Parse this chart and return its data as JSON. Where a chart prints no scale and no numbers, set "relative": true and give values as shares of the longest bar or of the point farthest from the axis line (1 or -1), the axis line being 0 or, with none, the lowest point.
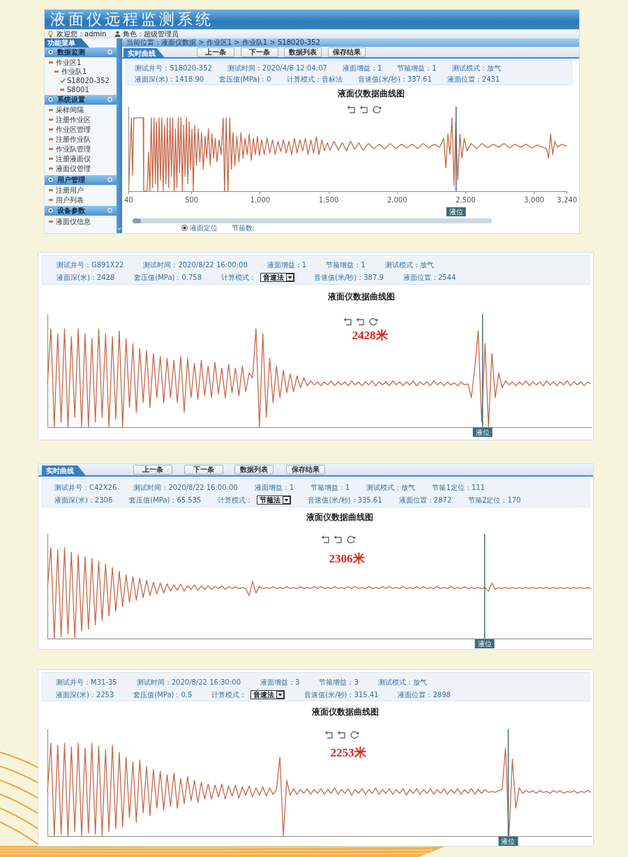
{
  "chart_data": [
    {
      "type": "line",
      "title": "液面仪数据曲线图",
      "annotations": [
        "液面仪远程监测系统",
        "欢迎您：admin",
        "角色：超级管理员",
        "功能菜单",
        "数据监测",
        "作业区1",
        "作业队1",
        "S18020-352",
        "S8001",
        "系统设置",
        "采样间隔",
        "注册作业区",
        "作业区管理",
        "注册作业队",
        "作业队管理",
        "注册液面仪",
        "液面仪管理",
        "用户管理",
        "注册用户",
        "用户列表",
        "设备参数",
        "液面仪信息",
        "当前位置：液面仪数据 > 作业区1 > 作业队1 > S18020-352",
        "实时曲线",
        "上一条",
        "下一条",
        "数据列表",
        "保存结果",
        "测试井号：S18020-352",
        "测试时间：2020/4/8 12:04:07",
        "液面增益：1",
        "节箍增益：1",
        "测试模式：放气",
        "液面深(米)：1418.90",
        "套压值(MPa)：0",
        "计算模式：音标法",
        "音速值(米/秒)：337.61",
        "液面位置：2431",
        "液面定位",
        "节箍数:"
      ],
      "x": [
        40,
        60,
        68,
        78,
        146,
        150,
        175,
        185,
        195,
        205,
        215,
        225,
        235,
        243,
        253,
        262,
        272,
        282,
        292,
        302,
        312,
        322,
        332,
        342,
        352,
        362,
        372,
        382,
        392,
        402,
        412,
        422,
        432,
        442,
        452,
        462,
        472,
        482,
        492,
        502,
        512,
        522,
        535,
        548,
        560,
        572,
        585,
        598,
        610,
        622,
        635,
        648,
        660,
        672,
        685,
        700,
        715,
        730,
        740,
        752,
        765,
        778,
        790,
        802,
        815,
        830,
        845,
        860,
        875,
        890,
        905,
        920,
        935,
        950,
        965,
        980,
        995,
        1010,
        1030,
        1050,
        1070,
        1090,
        1110,
        1130,
        1150,
        1170,
        1190,
        1210,
        1230,
        1250,
        1270,
        1290,
        1310,
        1330,
        1350,
        1370,
        1390,
        1410,
        1430,
        1450,
        1470,
        1490,
        1510,
        1540,
        1570,
        1600,
        1630,
        1660,
        1690,
        1720,
        1750,
        1790,
        1830,
        1870,
        1910,
        1950,
        1990,
        2030,
        2070,
        2110,
        2150,
        2190,
        2230,
        2270,
        2310,
        2340,
        2355,
        2370,
        2385,
        2400,
        2415,
        2428,
        2442,
        2458,
        2472,
        2490,
        2510,
        2540,
        2580,
        2620,
        2660,
        2700,
        2740,
        2780,
        2820,
        2860,
        2900,
        2940,
        2980,
        3020,
        3060,
        3090,
        3105,
        3120,
        3135,
        3150,
        3170,
        3200,
        3240
      ],
      "values": [
        0,
        1,
        0.22,
        1,
        1,
        0,
        0,
        0.53,
        0,
        1,
        0.05,
        1,
        0.1,
        0.95,
        0,
        1,
        0.15,
        1,
        0,
        0.9,
        0.1,
        1,
        0.05,
        1,
        0.2,
        1,
        0,
        0.85,
        0.05,
        1,
        0.25,
        1,
        0,
        0.9,
        0.2,
        1,
        0.1,
        0.95,
        0.3,
        0.85,
        0,
        0.9,
        0.35,
        0.85,
        0.4,
        0.8,
        0.3,
        0.75,
        0.45,
        0.85,
        0.35,
        0.78,
        0.45,
        0.72,
        0.4,
        0.7,
        0.5,
        1,
        0,
        1,
        0,
        1,
        0.3,
        0.8,
        0.35,
        0.75,
        0.4,
        0.8,
        0.45,
        0.72,
        0.5,
        0.78,
        0.42,
        0.72,
        0.5,
        0.75,
        0.48,
        0.7,
        0.5,
        0.72,
        0.52,
        0.7,
        0.5,
        0.68,
        0.54,
        0.7,
        0.52,
        0.68,
        0.5,
        0.72,
        0.52,
        0.7,
        0.55,
        0.72,
        0.5,
        0.7,
        0.52,
        0.74,
        0.5,
        0.7,
        0.55,
        0.66,
        0.56,
        0.68,
        0.56,
        0.66,
        0.55,
        0.68,
        0.57,
        0.66,
        0.56,
        0.65,
        0.58,
        0.64,
        0.58,
        0.65,
        0.58,
        0.64,
        0.59,
        0.64,
        0.58,
        0.65,
        0.59,
        0.64,
        0.6,
        0.72,
        0.32,
        0.78,
        0.5,
        1,
        0.08,
        0.95,
        0.15,
        0.78,
        0.45,
        0.72,
        0.55,
        0.65,
        0.58,
        0.65,
        0.59,
        0.64,
        0.6,
        0.65,
        0.59,
        0.64,
        0.6,
        0.64,
        0.59,
        0.63,
        0.6,
        0.58,
        0.45,
        0.78,
        0.5,
        0.68,
        0.6,
        0.64,
        0.61
      ],
      "color": "#c4694c",
      "relative": true,
      "xlim": [
        40,
        3240
      ],
      "xticks": [
        40,
        500,
        {
          "value": 1000,
          "label": "1,000"
        },
        {
          "value": 1500,
          "label": "1,500"
        },
        {
          "value": 2000,
          "label": "2,000"
        },
        {
          "value": 2500,
          "label": "2,500"
        },
        {
          "value": 3000,
          "label": "3,000"
        },
        {
          "value": 3240,
          "label": "3,240"
        }
      ],
      "ref_lines": [
        {
          "axis": "x",
          "value": 2430,
          "label": "液位",
          "color": "#3c6b7b"
        }
      ],
      "tick_labels": "x"
    },
    {
      "type": "line",
      "title": "液面仪数据曲线图",
      "annotations": [
        "测试井号：G891X22",
        "测试时间：2020/8/22 16:00:00",
        "液面增益：1",
        "节箍增益：1",
        "测试模式：放气",
        "液面深(米)：2428",
        "套压值(MPa)：0.758",
        "计算模式：",
        "音速法",
        "音速值(米/秒)：387.9",
        "液面位置：2544",
        "2428米",
        "液位"
      ],
      "categories": [
        null,
        null,
        null,
        null,
        null,
        null,
        null,
        null,
        null,
        null,
        null,
        null,
        null,
        null,
        null,
        null,
        null,
        null,
        null,
        null,
        null,
        null,
        null,
        null,
        null,
        null,
        null,
        null,
        null,
        null,
        null,
        null,
        null,
        null,
        null,
        null,
        null,
        null,
        null,
        null,
        null,
        null,
        null,
        null,
        null,
        null,
        null,
        null,
        null,
        null,
        null,
        null,
        null,
        null,
        null,
        null,
        null,
        null,
        null,
        null,
        null,
        null,
        null,
        null,
        null,
        null,
        null,
        null,
        null,
        null,
        null,
        null,
        null,
        null,
        null,
        null,
        null,
        null,
        null,
        null,
        null,
        null,
        null,
        null,
        null,
        null,
        null,
        null,
        null,
        null,
        null,
        null,
        null,
        null,
        null,
        null,
        null,
        null,
        null,
        null,
        null,
        null,
        null,
        null,
        null,
        null,
        null,
        null,
        null,
        null,
        null,
        null,
        null,
        null,
        null,
        null,
        null,
        null,
        null,
        null,
        null,
        null,
        null,
        null,
        null,
        null,
        null,
        null,
        null,
        null,
        null,
        null,
        null,
        null,
        null,
        null,
        null,
        null,
        null,
        null,
        null,
        null,
        null,
        null,
        null,
        null,
        null,
        null,
        null,
        null,
        null,
        null,
        null,
        null,
        null,
        null,
        null,
        null,
        null,
        null
      ],
      "values": [
        0.44,
        1,
        0,
        0.95,
        0.05,
        1,
        0,
        0.92,
        0.1,
        1,
        0,
        0.95,
        0,
        0.9,
        0.05,
        1,
        0.1,
        0.95,
        0,
        0.92,
        0.08,
        0.98,
        0,
        0.9,
        0.2,
        0.85,
        0.15,
        0.8,
        0.25,
        0.78,
        0.2,
        0.75,
        0.3,
        0.72,
        0.25,
        0.7,
        0.3,
        0.68,
        0.25,
        0.72,
        0.15,
        0.7,
        0.3,
        0.65,
        0.28,
        0.68,
        0.32,
        0.62,
        0.3,
        0.66,
        0.34,
        0.6,
        0.3,
        0.64,
        0.35,
        0.6,
        0.32,
        0.62,
        0.36,
        0.55,
        0.5,
        1,
        0,
        0.95,
        0.1,
        0.7,
        0.25,
        0.62,
        0.3,
        0.58,
        0.35,
        0.54,
        0.36,
        0.52,
        0.4,
        0.5,
        0.42,
        0.47,
        0.43,
        0.46,
        0.42,
        0.46,
        0.43,
        0.47,
        0.42,
        0.46,
        0.43,
        0.46,
        0.42,
        0.47,
        0.43,
        0.46,
        0.42,
        0.46,
        0.43,
        0.47,
        0.42,
        0.46,
        0.43,
        0.46,
        0.42,
        0.47,
        0.43,
        0.46,
        0.42,
        0.46,
        0.43,
        0.47,
        0.42,
        0.46,
        0.43,
        0.46,
        0.42,
        0.47,
        0.43,
        0.46,
        0.42,
        0.46,
        0.43,
        0.45,
        0.42,
        0.46,
        0.43,
        0.44,
        0.3,
        0.6,
        0.98,
        0.05,
        0.85,
        0,
        0.75,
        0.3,
        0.55,
        0.4,
        0.47,
        0.43,
        0.46,
        0.42,
        0.46,
        0.43,
        0.47,
        0.42,
        0.46,
        0.43,
        0.46,
        0.42,
        0.47,
        0.43,
        0.46,
        0.42,
        0.46,
        0.43,
        0.47,
        0.42,
        0.46,
        0.43,
        0.46,
        0.42,
        0.46,
        0.44
      ],
      "color": "#c4694c",
      "relative": true,
      "tick_labels": false
    },
    {
      "type": "line",
      "title": "液面仪数据曲线图",
      "annotations": [
        "实时曲线",
        "上一条",
        "下一条",
        "数据列表",
        "保存结果",
        "测试井号：C42X26",
        "测试时间：2020/8/22 16:00:00",
        "液面增益：1",
        "节箍增益：1",
        "测试模式：放气",
        "节箍1定位：111",
        "液面深(米)：2306",
        "套压值(MPa)：65.535",
        "计算模式：",
        "节箍法",
        "音速值(米/秒)：335.61",
        "液面位置：2872",
        "节箍2定位：170",
        "2306米",
        "液位"
      ],
      "categories": [
        null,
        null,
        null,
        null,
        null,
        null,
        null,
        null,
        null,
        null,
        null,
        null,
        null,
        null,
        null,
        null,
        null,
        null,
        null,
        null,
        null,
        null,
        null,
        null,
        null,
        null,
        null,
        null,
        null,
        null,
        null,
        null,
        null,
        null,
        null,
        null,
        null,
        null,
        null,
        null,
        null,
        null,
        null,
        null,
        null,
        null,
        null,
        null,
        null,
        null,
        null,
        null,
        null,
        null,
        null,
        null,
        null,
        null,
        null,
        null,
        null,
        null,
        null,
        null,
        null,
        null,
        null,
        null,
        null,
        null,
        null,
        null,
        null,
        null,
        null,
        null,
        null,
        null,
        null,
        null,
        null,
        null,
        null,
        null,
        null,
        null,
        null,
        null,
        null,
        null,
        null,
        null,
        null,
        null,
        null,
        null,
        null,
        null,
        null,
        null,
        null,
        null,
        null,
        null,
        null,
        null,
        null,
        null,
        null,
        null,
        null,
        null,
        null,
        null,
        null,
        null,
        null,
        null,
        null,
        null,
        null,
        null,
        null,
        null,
        null,
        null,
        null,
        null,
        null,
        null,
        null,
        null,
        null,
        null,
        null,
        null,
        null,
        null,
        null,
        null,
        null,
        null,
        null,
        null,
        null,
        null,
        null,
        null,
        null,
        null,
        null,
        null,
        null,
        null,
        null,
        null,
        null,
        null,
        null,
        null
      ],
      "values": [
        0.56,
        1,
        0,
        0.98,
        0.02,
        1,
        0.05,
        0.95,
        0,
        0.92,
        0.08,
        0.9,
        0.1,
        0.88,
        0.15,
        0.85,
        0.2,
        0.82,
        0.25,
        0.78,
        0.3,
        0.74,
        0.35,
        0.7,
        0.4,
        0.68,
        0.42,
        0.66,
        0.45,
        0.64,
        0.47,
        0.62,
        0.49,
        0.61,
        0.5,
        0.6,
        0.52,
        0.59,
        0.53,
        0.6,
        0.52,
        0.58,
        0.54,
        0.59,
        0.53,
        0.58,
        0.54,
        0.58,
        0.54,
        0.57,
        0.55,
        0.58,
        0.54,
        0.57,
        0.55,
        0.57,
        0.55,
        0.56,
        0.55,
        0.47,
        0.63,
        0.5,
        0.57,
        0.55,
        0.56,
        0.55,
        0.57,
        0.55,
        0.56,
        0.55,
        0.57,
        0.55,
        0.56,
        0.55,
        0.57,
        0.55,
        0.56,
        0.55,
        0.57,
        0.55,
        0.57,
        0.55,
        0.56,
        0.55,
        0.57,
        0.55,
        0.56,
        0.55,
        0.57,
        0.55,
        0.57,
        0.55,
        0.56,
        0.55,
        0.57,
        0.55,
        0.56,
        0.55,
        0.57,
        0.55,
        0.57,
        0.55,
        0.56,
        0.55,
        0.57,
        0.55,
        0.56,
        0.55,
        0.57,
        0.55,
        0.57,
        0.55,
        0.56,
        0.55,
        0.57,
        0.55,
        0.56,
        0.55,
        0.57,
        0.55,
        0.56,
        0.55,
        0.57,
        0.55,
        0.56,
        0.55,
        0.56,
        0.55,
        0.56,
        0.52,
        0.61,
        0.54,
        0.56,
        0.55,
        0.56,
        0.55,
        0.56,
        0.55,
        0.56,
        0.55,
        0.56,
        0.55,
        0.56,
        0.55,
        0.56,
        0.55,
        0.56,
        0.55,
        0.56,
        0.55,
        0.56,
        0.55,
        0.56,
        0.55,
        0.56,
        0.55,
        0.56,
        0.55,
        0.56,
        0.55
      ],
      "color": "#c4694c",
      "relative": true,
      "tick_labels": false
    },
    {
      "type": "line",
      "title": "液面仪数据曲线图",
      "annotations": [
        "测试井号：M31-35",
        "测试时间：2020/8/22 16:30:00",
        "液面增益：3",
        "节箍增益：3",
        "测试模式：放气",
        "液面深(米)：2253",
        "套压值(MPa)：0.5",
        "计算模式：",
        "音速法",
        "音速值(米/秒)：315.41",
        "液面位置：2898",
        "2253米",
        "液位"
      ],
      "categories": [
        null,
        null,
        null,
        null,
        null,
        null,
        null,
        null,
        null,
        null,
        null,
        null,
        null,
        null,
        null,
        null,
        null,
        null,
        null,
        null,
        null,
        null,
        null,
        null,
        null,
        null,
        null,
        null,
        null,
        null,
        null,
        null,
        null,
        null,
        null,
        null,
        null,
        null,
        null,
        null,
        null,
        null,
        null,
        null,
        null,
        null,
        null,
        null,
        null,
        null,
        null,
        null,
        null,
        null,
        null,
        null,
        null,
        null,
        null,
        null,
        null,
        null,
        null,
        null,
        null,
        null,
        null,
        null,
        null,
        null,
        null,
        null,
        null,
        null,
        null,
        null,
        null,
        null,
        null,
        null,
        null,
        null,
        null,
        null,
        null,
        null,
        null,
        null,
        null,
        null,
        null,
        null,
        null,
        null,
        null,
        null,
        null,
        null,
        null,
        null,
        null,
        null,
        null,
        null,
        null,
        null,
        null,
        null,
        null,
        null,
        null,
        null,
        null,
        null,
        null,
        null,
        null,
        null,
        null,
        null,
        null,
        null,
        null,
        null,
        null,
        null,
        null,
        null,
        null,
        null,
        null,
        null,
        null,
        null,
        null,
        null,
        null,
        null,
        null,
        null,
        null,
        null,
        null,
        null,
        null,
        null,
        null,
        null,
        null,
        null,
        null,
        null,
        null,
        null,
        null,
        null,
        null,
        null,
        null,
        null
      ],
      "values": [
        0.48,
        1,
        0,
        0.98,
        0.02,
        1,
        0,
        0.96,
        0.05,
        1,
        0,
        0.95,
        0.03,
        1,
        0.02,
        0.97,
        0,
        0.93,
        0.05,
        0.98,
        0.08,
        0.9,
        0.1,
        0.85,
        0.2,
        0.8,
        0.15,
        0.82,
        0.25,
        0.75,
        0.22,
        0.72,
        0.3,
        0.7,
        0.28,
        0.66,
        0.32,
        0.68,
        0.3,
        0.62,
        0.35,
        0.64,
        0.38,
        0.6,
        0.36,
        0.58,
        0.4,
        0.56,
        0.4,
        0.55,
        0.42,
        0.56,
        0.4,
        0.54,
        0.43,
        0.55,
        0.41,
        0.53,
        0.44,
        0.54,
        0.42,
        0.52,
        0.44,
        0.53,
        0.43,
        0.52,
        0.45,
        0.5,
        0.85,
        0,
        0.6,
        0.44,
        0.51,
        0.45,
        0.5,
        0.46,
        0.51,
        0.45,
        0.5,
        0.46,
        0.51,
        0.45,
        0.5,
        0.46,
        0.52,
        0.45,
        0.5,
        0.46,
        0.51,
        0.44,
        0.5,
        0.46,
        0.51,
        0.45,
        0.5,
        0.46,
        0.52,
        0.45,
        0.5,
        0.46,
        0.51,
        0.45,
        0.5,
        0.46,
        0.51,
        0.44,
        0.5,
        0.46,
        0.51,
        0.45,
        0.5,
        0.46,
        0.51,
        0.45,
        0.5,
        0.46,
        0.51,
        0.45,
        0.5,
        0.46,
        0.51,
        0.45,
        0.5,
        0.46,
        0.51,
        0.45,
        0.5,
        0.46,
        0.5,
        0.47,
        0.48,
        0.47,
        0.49,
        0.5,
        0.95,
        0,
        0.83,
        0.3,
        0.52,
        0.46,
        0.49,
        0.47,
        0.49,
        0.46,
        0.49,
        0.47,
        0.48,
        0.46,
        0.49,
        0.47,
        0.49,
        0.46,
        0.48,
        0.47,
        0.49,
        0.46,
        0.48,
        0.47,
        0.49,
        0.47
      ],
      "color": "#c4694c",
      "relative": true,
      "tick_labels": false
    }
  ]
}
